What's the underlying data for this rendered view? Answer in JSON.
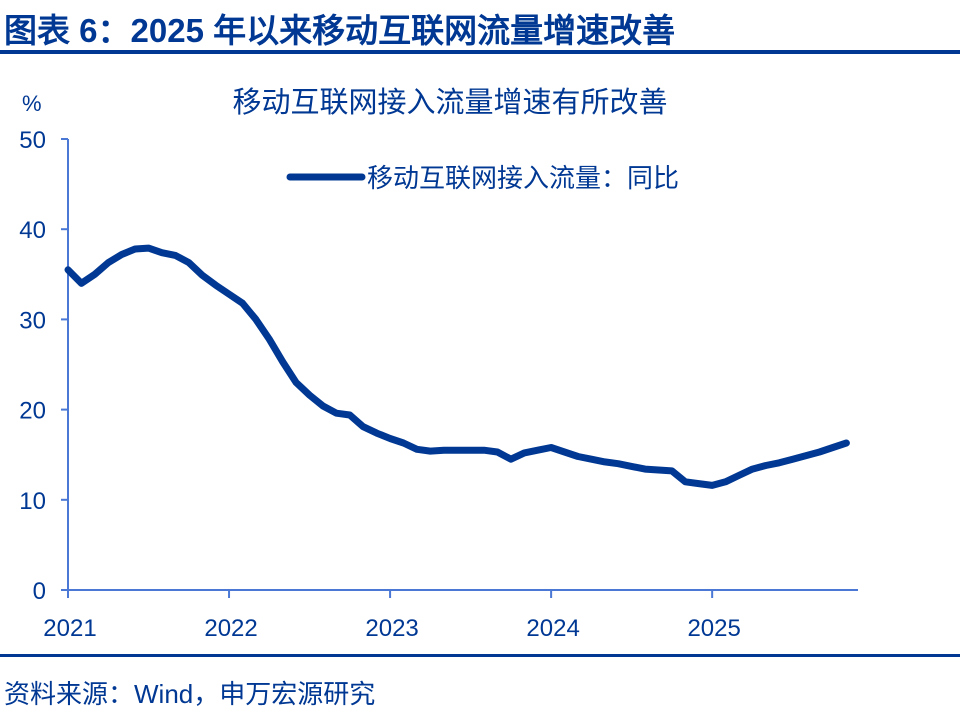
{
  "header": {
    "title": "图表 6：2025 年以来移动互联网流量增速改善"
  },
  "footer": {
    "source": "资料来源：Wind，申万宏源研究"
  },
  "colors": {
    "primary": "#003893",
    "axis": "#4a78d4",
    "line": "#003893"
  },
  "chart_data": {
    "type": "line",
    "title": "移动互联网接入流量增速有所改善",
    "ylabel": "%",
    "xlabel": "",
    "ylim": [
      0,
      50
    ],
    "yticks": [
      0,
      10,
      20,
      30,
      40,
      50
    ],
    "xticks": [
      "2021",
      "2022",
      "2023",
      "2024",
      "2025"
    ],
    "legend": {
      "position": "top-right",
      "entries": [
        "移动互联网接入流量：同比"
      ]
    },
    "grid": false,
    "series": [
      {
        "name": "移动互联网接入流量：同比",
        "x": [
          "2021-01",
          "2021-02",
          "2021-03",
          "2021-04",
          "2021-05",
          "2021-06",
          "2021-07",
          "2021-08",
          "2021-09",
          "2021-10",
          "2021-11",
          "2021-12",
          "2022-01",
          "2022-02",
          "2022-03",
          "2022-04",
          "2022-05",
          "2022-06",
          "2022-07",
          "2022-08",
          "2022-09",
          "2022-10",
          "2022-11",
          "2022-12",
          "2023-01",
          "2023-02",
          "2023-03",
          "2023-04",
          "2023-05",
          "2023-06",
          "2023-07",
          "2023-08",
          "2023-09",
          "2023-10",
          "2023-11",
          "2023-12",
          "2024-01",
          "2024-02",
          "2024-03",
          "2024-04",
          "2024-05",
          "2024-06",
          "2024-07",
          "2024-08",
          "2024-09",
          "2024-10",
          "2024-11",
          "2024-12",
          "2025-01",
          "2025-02",
          "2025-03",
          "2025-04",
          "2025-05",
          "2025-06",
          "2025-07",
          "2025-08",
          "2025-09",
          "2025-10",
          "2025-11"
        ],
        "values": [
          35.5,
          34.0,
          35.0,
          36.3,
          37.2,
          37.8,
          37.9,
          37.4,
          37.1,
          36.3,
          34.9,
          33.8,
          32.8,
          31.8,
          30.0,
          27.8,
          25.3,
          23.0,
          21.6,
          20.4,
          19.6,
          19.4,
          18.1,
          17.4,
          16.8,
          16.3,
          15.6,
          15.4,
          15.5,
          15.5,
          15.5,
          15.5,
          15.3,
          14.5,
          15.2,
          15.5,
          15.8,
          15.3,
          14.8,
          14.5,
          14.2,
          14.0,
          13.7,
          13.4,
          13.3,
          13.2,
          12.0,
          11.8,
          11.6,
          12.0,
          12.7,
          13.4,
          13.8,
          14.1,
          14.5,
          14.9,
          15.3,
          15.8,
          16.3
        ]
      }
    ]
  }
}
